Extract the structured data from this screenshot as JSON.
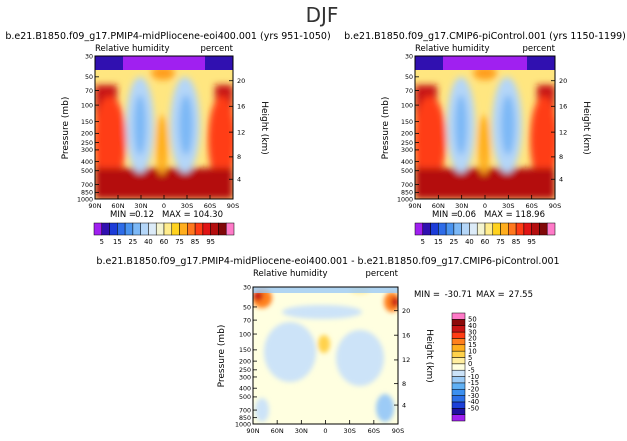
{
  "page_title": "DJF",
  "chart_data": [
    {
      "type": "heatmap",
      "title": "b.e21.B1850.f09_g17.PMIP4-midPliocene-eoi400.001 (yrs 951-1050)",
      "subtitle_left": "Relative humidity",
      "subtitle_right": "percent",
      "xlabel": "",
      "ylabel": "Pressure (mb)",
      "ylabel_right": "Height (km)",
      "x_ticks": [
        "90N",
        "60N",
        "30N",
        "0",
        "30S",
        "60S",
        "90S"
      ],
      "y_ticks": [
        "30",
        "50",
        "70",
        "100",
        "150",
        "200",
        "250",
        "300",
        "400",
        "500",
        "700",
        "850",
        "1000"
      ],
      "height_ticks": [
        "20",
        "16",
        "12",
        "8",
        "4"
      ],
      "min_label": "MIN =",
      "min_value": "0.12",
      "max_label": "MAX =",
      "max_value": "104.30",
      "min": 0.12,
      "max": 104.3
    },
    {
      "type": "heatmap",
      "title": "b.e21.B1850.f09_g17.CMIP6-piControl.001 (yrs 1150-1199)",
      "subtitle_left": "Relative humidity",
      "subtitle_right": "percent",
      "xlabel": "",
      "ylabel": "Pressure (mb)",
      "ylabel_right": "Height (km)",
      "x_ticks": [
        "90N",
        "60N",
        "30N",
        "0",
        "30S",
        "60S",
        "90S"
      ],
      "y_ticks": [
        "30",
        "50",
        "70",
        "100",
        "150",
        "200",
        "250",
        "300",
        "400",
        "500",
        "700",
        "850",
        "1000"
      ],
      "height_ticks": [
        "20",
        "16",
        "12",
        "8",
        "4"
      ],
      "min_label": "MIN =",
      "min_value": "0.06",
      "max_label": "MAX =",
      "max_value": "118.96",
      "min": 0.06,
      "max": 118.96
    },
    {
      "type": "heatmap",
      "title": "b.e21.B1850.f09_g17.PMIP4-midPliocene-eoi400.001 - b.e21.B1850.f09_g17.CMIP6-piControl.001",
      "subtitle_left": "Relative humidity",
      "subtitle_right": "percent",
      "xlabel": "",
      "ylabel": "Pressure (mb)",
      "ylabel_right": "Height (km)",
      "x_ticks": [
        "90N",
        "60N",
        "30N",
        "0",
        "30S",
        "60S",
        "90S"
      ],
      "y_ticks": [
        "30",
        "50",
        "70",
        "100",
        "150",
        "200",
        "250",
        "300",
        "400",
        "500",
        "700",
        "850",
        "1000"
      ],
      "height_ticks": [
        "20",
        "16",
        "12",
        "8",
        "4"
      ],
      "min_label": "MIN =",
      "min_value": "-30.71",
      "max_label": "MAX =",
      "max_value": "27.55",
      "min": -30.71,
      "max": 27.55
    }
  ],
  "colorbars": {
    "absolute": {
      "colors": [
        "#a020f0",
        "#3010b0",
        "#1c3cd8",
        "#2e6ce8",
        "#4a94f0",
        "#7cb8f6",
        "#b4d6f8",
        "#dcebf8",
        "#f4f4d0",
        "#ffec8c",
        "#ffd21e",
        "#ffae1e",
        "#ff781e",
        "#ff3c14",
        "#e01414",
        "#b40f0f",
        "#800808",
        "#ff7ac8"
      ],
      "labels": [
        "5",
        "15",
        "25",
        "40",
        "60",
        "75",
        "85",
        "95"
      ]
    },
    "difference": {
      "colors": [
        "#a020f0",
        "#2010a0",
        "#1c40d8",
        "#2c70e8",
        "#3c90f0",
        "#60b0f4",
        "#9ccbf6",
        "#cce3f8",
        "#ffffe0",
        "#ffeea0",
        "#ffd24c",
        "#ffae1e",
        "#ff801e",
        "#ff3c14",
        "#c81414",
        "#8c0a0a",
        "#ff7ac8"
      ],
      "labels": [
        "-50",
        "-40",
        "-30",
        "-20",
        "-15",
        "-10",
        "-5",
        "0",
        "5",
        "10",
        "15",
        "20",
        "30",
        "40",
        "50"
      ]
    }
  }
}
